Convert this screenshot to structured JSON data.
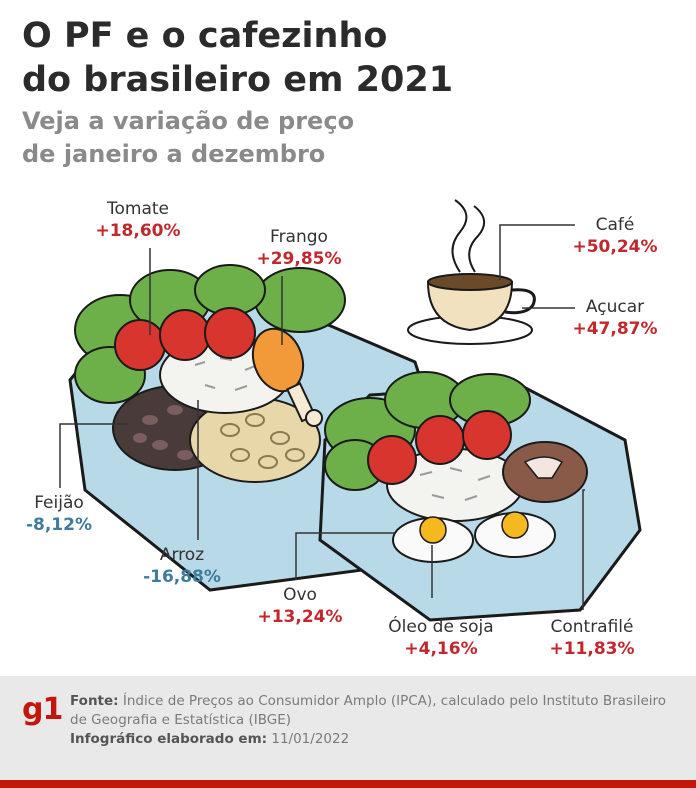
{
  "header": {
    "title_line1": "O PF e o cafezinho",
    "title_line2": "do brasileiro em 2021",
    "subtitle_line1": "Veja a variação de preço",
    "subtitle_line2": "de janeiro a dezembro"
  },
  "items": [
    {
      "name": "Tomate",
      "value": "+18,60%",
      "trend": "up"
    },
    {
      "name": "Frango",
      "value": "+29,85%",
      "trend": "up"
    },
    {
      "name": "Café",
      "value": "+50,24%",
      "trend": "up"
    },
    {
      "name": "Açucar",
      "value": "+47,87%",
      "trend": "up"
    },
    {
      "name": "Feijão",
      "value": "-8,12%",
      "trend": "down"
    },
    {
      "name": "Arroz",
      "value": "-16,88%",
      "trend": "down"
    },
    {
      "name": "Ovo",
      "value": "+13,24%",
      "trend": "up"
    },
    {
      "name": "Óleo de soja",
      "value": "+4,16%",
      "trend": "up"
    },
    {
      "name": "Contrafilé",
      "value": "+11,83%",
      "trend": "up"
    }
  ],
  "colors": {
    "up": "#c0282d",
    "down": "#3e7c99",
    "brand": "#c4170c"
  },
  "footer": {
    "logo": "g1",
    "source_label": "Fonte:",
    "source_text": "Índice de Preços ao Consumidor Amplo (IPCA), calculado pelo Instituto Brasileiro de Geografia e Estatística (IBGE)",
    "date_label": "Infográfico elaborado em:",
    "date_text": "11/01/2022"
  }
}
